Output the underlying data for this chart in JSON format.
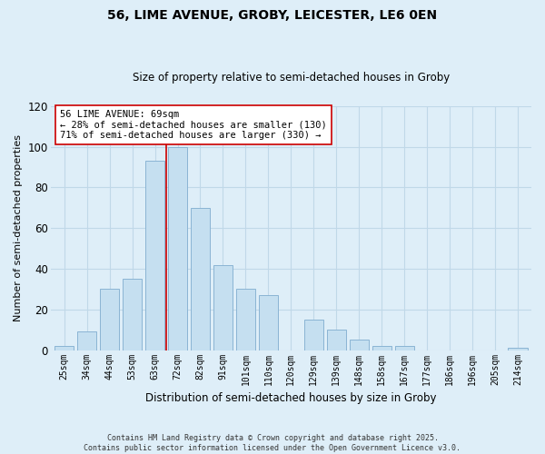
{
  "title": "56, LIME AVENUE, GROBY, LEICESTER, LE6 0EN",
  "subtitle": "Size of property relative to semi-detached houses in Groby",
  "xlabel": "Distribution of semi-detached houses by size in Groby",
  "ylabel": "Number of semi-detached properties",
  "bar_color": "#c5dff0",
  "bar_edge_color": "#8ab4d4",
  "bg_color": "#deeef8",
  "grid_color": "#c0d8e8",
  "categories": [
    "25sqm",
    "34sqm",
    "44sqm",
    "53sqm",
    "63sqm",
    "72sqm",
    "82sqm",
    "91sqm",
    "101sqm",
    "110sqm",
    "120sqm",
    "129sqm",
    "139sqm",
    "148sqm",
    "158sqm",
    "167sqm",
    "177sqm",
    "186sqm",
    "196sqm",
    "205sqm",
    "214sqm"
  ],
  "values": [
    2,
    9,
    30,
    35,
    93,
    100,
    70,
    42,
    30,
    27,
    0,
    15,
    10,
    5,
    2,
    2,
    0,
    0,
    0,
    0,
    1
  ],
  "ylim": [
    0,
    120
  ],
  "yticks": [
    0,
    20,
    40,
    60,
    80,
    100,
    120
  ],
  "property_line_color": "#cc0000",
  "annotation_title": "56 LIME AVENUE: 69sqm",
  "annotation_line1": "← 28% of semi-detached houses are smaller (130)",
  "annotation_line2": "71% of semi-detached houses are larger (330) →",
  "annotation_box_color": "white",
  "annotation_border_color": "#cc0000",
  "footer_line1": "Contains HM Land Registry data © Crown copyright and database right 2025.",
  "footer_line2": "Contains public sector information licensed under the Open Government Licence v3.0."
}
